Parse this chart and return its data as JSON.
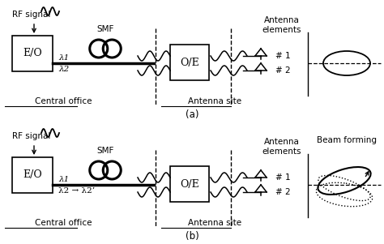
{
  "fig_width": 4.74,
  "fig_height": 3.01,
  "dpi": 100,
  "bg_color": "#ffffff",
  "text_color": "#000000",
  "line_color": "#000000",
  "diagram_a": {
    "label": "(a)",
    "rf_signal_text": "RF signal",
    "smf_text": "SMF",
    "eo_text": "E/O",
    "oe_text": "O/E",
    "central_office_text": "Central office",
    "antenna_site_text": "Antenna site",
    "antenna_elements_text": "Antenna\nelements",
    "lambda1": "λ1",
    "lambda2": "λ2",
    "ant1": "# 1",
    "ant2": "# 2"
  },
  "diagram_b": {
    "label": "(b)",
    "rf_signal_text": "RF signal",
    "smf_text": "SMF",
    "eo_text": "E/O",
    "oe_text": "O/E",
    "central_office_text": "Central office",
    "antenna_site_text": "Antenna site",
    "antenna_elements_text": "Antenna\nelements",
    "beam_forming_text": "Beam forming",
    "lambda1": "λ1",
    "lambda2_arrow": "λ2 → λ2’",
    "ant1": "# 1",
    "ant2": "# 2"
  }
}
